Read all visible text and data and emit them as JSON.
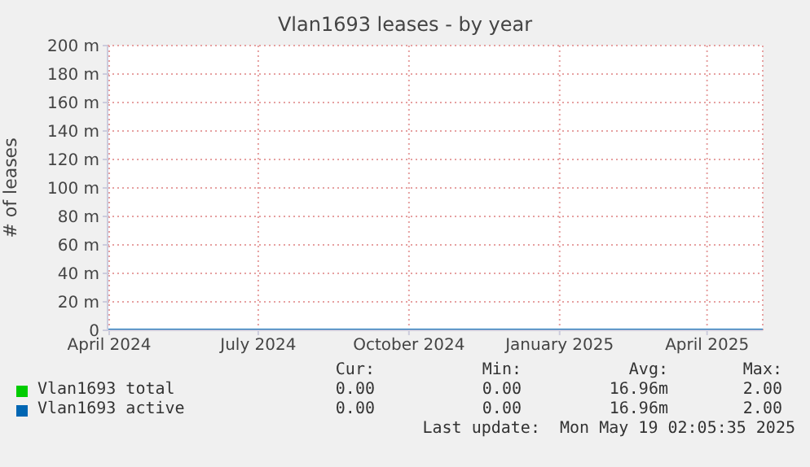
{
  "chart_data": {
    "type": "line",
    "title": "Vlan1693 leases - by year",
    "ylabel": "# of leases",
    "x": [
      "2024-04-14",
      "2024-05-15",
      "2024-06-15",
      "2024-07-15",
      "2024-08-15",
      "2024-09-15",
      "2024-10-15",
      "2024-11-15",
      "2024-12-15",
      "2025-01-15",
      "2025-02-15",
      "2025-03-15",
      "2025-04-15",
      "2025-05-19"
    ],
    "series": [
      {
        "name": "Vlan1693 total",
        "color": "#00cc00",
        "values": [
          null,
          null,
          null,
          null,
          null,
          null,
          null,
          null,
          null,
          null,
          null,
          null,
          null,
          null
        ]
      },
      {
        "name": "Vlan1693 active",
        "color": "#0066b3",
        "values": [
          0,
          0,
          0,
          0,
          0,
          0,
          0,
          0,
          0,
          0,
          0,
          0,
          0,
          0
        ]
      }
    ],
    "xlim": [
      "2024-04-14",
      "2025-05-19"
    ],
    "xticks": [
      {
        "value": "2024-04-15",
        "label": "April 2024"
      },
      {
        "value": "2024-07-15",
        "label": "July 2024"
      },
      {
        "value": "2024-10-15",
        "label": "October 2024"
      },
      {
        "value": "2025-01-15",
        "label": "January 2025"
      },
      {
        "value": "2025-04-15",
        "label": "April 2025"
      }
    ],
    "ylim": [
      0,
      200
    ],
    "yticks": [
      0,
      {
        "value": 20,
        "label": "20 m"
      },
      {
        "value": 40,
        "label": "40 m"
      },
      {
        "value": 60,
        "label": "60 m"
      },
      {
        "value": 80,
        "label": "80 m"
      },
      {
        "value": 100,
        "label": "100 m"
      },
      {
        "value": 120,
        "label": "120 m"
      },
      {
        "value": 140,
        "label": "140 m"
      },
      {
        "value": 160,
        "label": "160 m"
      },
      {
        "value": 180,
        "label": "180 m"
      },
      {
        "value": 200,
        "label": "200 m"
      }
    ],
    "grid": true,
    "legend": "bottom",
    "marker": "none",
    "line_style": "solid",
    "annotations": [
      "Cur:",
      "Min:",
      "Avg:",
      "Max:",
      "0.00",
      "0.00",
      "16.96m",
      "2.00",
      "0.00",
      "0.00",
      "16.96m",
      "2.00",
      "Last update:  Mon May 19 02:05:35 2025"
    ]
  }
}
